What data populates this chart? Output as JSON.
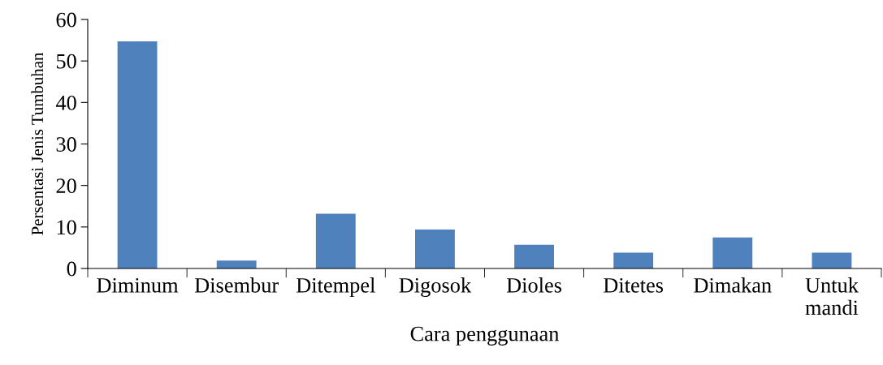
{
  "chart_data": {
    "type": "bar",
    "xlabel": "Cara penggunaan",
    "ylabel": "Persentasi Jenis Tumbuhan",
    "categories": [
      "Diminum",
      "Disembur",
      "Ditempel",
      "Digosok",
      "Dioles",
      "Ditetes",
      "Dimakan",
      "Untuk\nmandi"
    ],
    "values": [
      54.7,
      1.9,
      13.2,
      9.4,
      5.7,
      3.8,
      7.5,
      3.8
    ],
    "color": "#4f81bd",
    "ylim": [
      0,
      60
    ],
    "yticks": [
      0,
      10,
      20,
      30,
      40,
      50,
      60
    ],
    "grid": false,
    "legend": false
  }
}
